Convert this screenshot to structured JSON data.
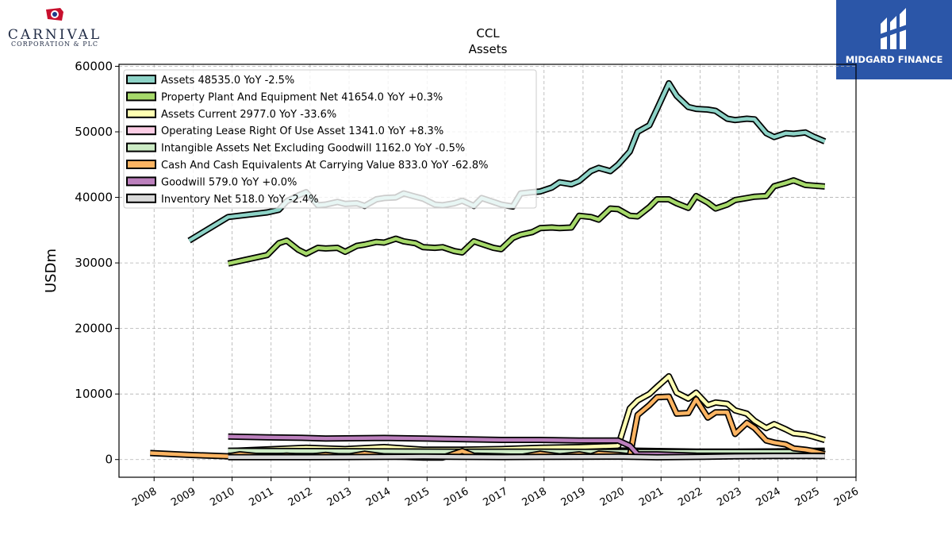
{
  "header": {
    "left_logo": {
      "name": "CARNIVAL",
      "subtitle": "CORPORATION & PLC"
    },
    "right_logo": {
      "name": "MIDGARD FINANCE"
    }
  },
  "chart_data": {
    "type": "line",
    "title": "CCL",
    "subtitle": "Assets",
    "xlabel": "",
    "ylabel": "USDm",
    "xlim": [
      2007.1,
      2026.0
    ],
    "ylim": [
      -2700,
      60300
    ],
    "x_ticks": [
      2008,
      2009,
      2010,
      2011,
      2012,
      2013,
      2014,
      2015,
      2016,
      2017,
      2018,
      2019,
      2020,
      2021,
      2022,
      2023,
      2024,
      2025,
      2026
    ],
    "x_tick_labels": [
      "2008",
      "2009",
      "2010",
      "2011",
      "2012",
      "2013",
      "2014",
      "2015",
      "2016",
      "2017",
      "2018",
      "2019",
      "2020",
      "2021",
      "2022",
      "2023",
      "2024",
      "2025",
      "2026"
    ],
    "y_ticks": [
      0,
      10000,
      20000,
      30000,
      40000,
      50000,
      60000
    ],
    "y_tick_labels": [
      "0",
      "10000",
      "20000",
      "30000",
      "40000",
      "50000",
      "60000"
    ],
    "grid": true,
    "legend_position": "top-left",
    "series": [
      {
        "name": "Assets  48535.0 YoY -2.5%",
        "color": "#8dd3c7",
        "points": [
          [
            2008.9,
            33400
          ],
          [
            2009.9,
            37000
          ],
          [
            2010.9,
            37700
          ],
          [
            2011.2,
            38100
          ],
          [
            2011.4,
            39400
          ],
          [
            2011.7,
            40300
          ],
          [
            2011.9,
            40800
          ],
          [
            2012.2,
            38800
          ],
          [
            2012.4,
            38900
          ],
          [
            2012.7,
            39300
          ],
          [
            2012.9,
            39000
          ],
          [
            2013.2,
            39100
          ],
          [
            2013.4,
            38700
          ],
          [
            2013.7,
            39700
          ],
          [
            2013.9,
            39900
          ],
          [
            2014.2,
            40000
          ],
          [
            2014.4,
            40600
          ],
          [
            2014.7,
            40100
          ],
          [
            2014.9,
            39800
          ],
          [
            2015.2,
            38900
          ],
          [
            2015.4,
            38800
          ],
          [
            2015.7,
            39100
          ],
          [
            2015.9,
            39500
          ],
          [
            2016.2,
            38700
          ],
          [
            2016.4,
            39900
          ],
          [
            2016.7,
            39300
          ],
          [
            2016.9,
            38900
          ],
          [
            2017.2,
            38600
          ],
          [
            2017.4,
            40600
          ],
          [
            2017.7,
            40800
          ],
          [
            2017.9,
            40900
          ],
          [
            2018.2,
            41500
          ],
          [
            2018.4,
            42300
          ],
          [
            2018.7,
            42000
          ],
          [
            2018.9,
            42500
          ],
          [
            2019.2,
            44000
          ],
          [
            2019.4,
            44500
          ],
          [
            2019.7,
            44000
          ],
          [
            2019.9,
            45000
          ],
          [
            2020.2,
            47000
          ],
          [
            2020.4,
            50000
          ],
          [
            2020.7,
            51000
          ],
          [
            2020.9,
            53500
          ],
          [
            2021.2,
            57400
          ],
          [
            2021.4,
            55500
          ],
          [
            2021.7,
            53800
          ],
          [
            2021.9,
            53500
          ],
          [
            2022.2,
            53400
          ],
          [
            2022.4,
            53200
          ],
          [
            2022.7,
            52000
          ],
          [
            2022.9,
            51800
          ],
          [
            2023.2,
            52000
          ],
          [
            2023.4,
            51900
          ],
          [
            2023.7,
            49800
          ],
          [
            2023.9,
            49200
          ],
          [
            2024.2,
            49800
          ],
          [
            2024.4,
            49700
          ],
          [
            2024.7,
            49900
          ],
          [
            2024.9,
            49300
          ],
          [
            2025.2,
            48535
          ]
        ]
      },
      {
        "name": "Property Plant And Equipment Net  41654.0 YoY +0.3%",
        "color": "#a6d96a",
        "points": [
          [
            2009.9,
            29900
          ],
          [
            2010.9,
            31200
          ],
          [
            2011.2,
            33000
          ],
          [
            2011.4,
            33400
          ],
          [
            2011.7,
            32000
          ],
          [
            2011.9,
            31400
          ],
          [
            2012.2,
            32300
          ],
          [
            2012.4,
            32200
          ],
          [
            2012.7,
            32300
          ],
          [
            2012.9,
            31700
          ],
          [
            2013.2,
            32600
          ],
          [
            2013.4,
            32800
          ],
          [
            2013.7,
            33200
          ],
          [
            2013.9,
            33100
          ],
          [
            2014.2,
            33700
          ],
          [
            2014.4,
            33300
          ],
          [
            2014.7,
            33000
          ],
          [
            2014.9,
            32400
          ],
          [
            2015.2,
            32300
          ],
          [
            2015.4,
            32400
          ],
          [
            2015.7,
            31800
          ],
          [
            2015.9,
            31600
          ],
          [
            2016.2,
            33300
          ],
          [
            2016.4,
            32900
          ],
          [
            2016.7,
            32300
          ],
          [
            2016.9,
            32100
          ],
          [
            2017.2,
            33800
          ],
          [
            2017.4,
            34300
          ],
          [
            2017.7,
            34700
          ],
          [
            2017.9,
            35300
          ],
          [
            2018.2,
            35400
          ],
          [
            2018.4,
            35300
          ],
          [
            2018.7,
            35400
          ],
          [
            2018.9,
            37200
          ],
          [
            2019.2,
            37000
          ],
          [
            2019.4,
            36600
          ],
          [
            2019.7,
            38300
          ],
          [
            2019.9,
            38200
          ],
          [
            2020.2,
            37200
          ],
          [
            2020.4,
            37100
          ],
          [
            2020.7,
            38500
          ],
          [
            2020.9,
            39700
          ],
          [
            2021.2,
            39700
          ],
          [
            2021.4,
            39100
          ],
          [
            2021.7,
            38400
          ],
          [
            2021.9,
            40200
          ],
          [
            2022.2,
            39200
          ],
          [
            2022.4,
            38300
          ],
          [
            2022.7,
            38900
          ],
          [
            2022.9,
            39600
          ],
          [
            2023.2,
            39900
          ],
          [
            2023.4,
            40100
          ],
          [
            2023.7,
            40200
          ],
          [
            2023.9,
            41700
          ],
          [
            2024.2,
            42200
          ],
          [
            2024.4,
            42600
          ],
          [
            2024.7,
            41900
          ],
          [
            2024.9,
            41800
          ],
          [
            2025.2,
            41654
          ]
        ]
      },
      {
        "name": "Assets Current  2977.0 YoY -33.6%",
        "color": "#ffffb3",
        "points": [
          [
            2009.9,
            1300
          ],
          [
            2011.9,
            1800
          ],
          [
            2012.9,
            1600
          ],
          [
            2013.9,
            1900
          ],
          [
            2014.9,
            1500
          ],
          [
            2015.9,
            1500
          ],
          [
            2016.9,
            1600
          ],
          [
            2017.9,
            1800
          ],
          [
            2018.9,
            1900
          ],
          [
            2019.9,
            2100
          ],
          [
            2020.2,
            7800
          ],
          [
            2020.4,
            9000
          ],
          [
            2020.7,
            10000
          ],
          [
            2020.9,
            11100
          ],
          [
            2021.2,
            12700
          ],
          [
            2021.4,
            10200
          ],
          [
            2021.7,
            9300
          ],
          [
            2021.9,
            10200
          ],
          [
            2022.2,
            8300
          ],
          [
            2022.4,
            8700
          ],
          [
            2022.7,
            8500
          ],
          [
            2022.9,
            7500
          ],
          [
            2023.2,
            7000
          ],
          [
            2023.4,
            5900
          ],
          [
            2023.7,
            4800
          ],
          [
            2023.9,
            5400
          ],
          [
            2024.2,
            4600
          ],
          [
            2024.4,
            4000
          ],
          [
            2024.7,
            3800
          ],
          [
            2024.9,
            3500
          ],
          [
            2025.2,
            2977
          ]
        ]
      },
      {
        "name": "Operating Lease Right Of Use Asset  1341.0 YoY +8.3%",
        "color": "#fccde5",
        "points": [
          [
            2019.9,
            1400
          ],
          [
            2020.9,
            1300
          ],
          [
            2021.9,
            1200
          ],
          [
            2022.9,
            1200
          ],
          [
            2023.9,
            1240
          ],
          [
            2025.2,
            1341
          ]
        ]
      },
      {
        "name": "Intangible Assets Net Excluding Goodwill  1162.0 YoY -0.5%",
        "color": "#ccebc5",
        "points": [
          [
            2009.9,
            1350
          ],
          [
            2011.9,
            1300
          ],
          [
            2013.9,
            1250
          ],
          [
            2015.9,
            1200
          ],
          [
            2017.9,
            1200
          ],
          [
            2019.9,
            1180
          ],
          [
            2021.9,
            1170
          ],
          [
            2023.9,
            1168
          ],
          [
            2025.2,
            1162
          ]
        ]
      },
      {
        "name": "Cash And Cash Equivalents At Carrying Value  833.0 YoY -62.8%",
        "color": "#fdb462",
        "points": [
          [
            2007.9,
            1000
          ],
          [
            2008.9,
            700
          ],
          [
            2009.9,
            500
          ],
          [
            2010.2,
            800
          ],
          [
            2010.9,
            400
          ],
          [
            2011.4,
            600
          ],
          [
            2011.9,
            400
          ],
          [
            2012.4,
            700
          ],
          [
            2012.9,
            400
          ],
          [
            2013.4,
            900
          ],
          [
            2013.9,
            500
          ],
          [
            2014.4,
            400
          ],
          [
            2014.9,
            300
          ],
          [
            2015.4,
            300
          ],
          [
            2015.9,
            1300
          ],
          [
            2016.2,
            600
          ],
          [
            2016.9,
            500
          ],
          [
            2017.4,
            400
          ],
          [
            2017.9,
            900
          ],
          [
            2018.4,
            500
          ],
          [
            2018.9,
            800
          ],
          [
            2019.2,
            500
          ],
          [
            2019.4,
            900
          ],
          [
            2019.9,
            700
          ],
          [
            2020.2,
            500
          ],
          [
            2020.4,
            6800
          ],
          [
            2020.7,
            8300
          ],
          [
            2020.9,
            9500
          ],
          [
            2021.2,
            9600
          ],
          [
            2021.4,
            7000
          ],
          [
            2021.7,
            7100
          ],
          [
            2021.9,
            9200
          ],
          [
            2022.2,
            6400
          ],
          [
            2022.4,
            7200
          ],
          [
            2022.7,
            7200
          ],
          [
            2022.9,
            3900
          ],
          [
            2023.2,
            5600
          ],
          [
            2023.4,
            4800
          ],
          [
            2023.7,
            2900
          ],
          [
            2023.9,
            2600
          ],
          [
            2024.2,
            2300
          ],
          [
            2024.4,
            1700
          ],
          [
            2024.7,
            1500
          ],
          [
            2024.9,
            1300
          ],
          [
            2025.2,
            833
          ]
        ]
      },
      {
        "name": "Goodwill  579.0 YoY +0.0%",
        "color": "#bc80bd",
        "points": [
          [
            2009.9,
            3500
          ],
          [
            2010.9,
            3400
          ],
          [
            2011.9,
            3300
          ],
          [
            2012.4,
            3200
          ],
          [
            2013.9,
            3300
          ],
          [
            2014.9,
            3200
          ],
          [
            2015.9,
            3100
          ],
          [
            2016.9,
            3000
          ],
          [
            2017.9,
            3000
          ],
          [
            2018.9,
            2900
          ],
          [
            2019.9,
            2900
          ],
          [
            2020.2,
            2100
          ],
          [
            2020.4,
            800
          ],
          [
            2020.9,
            800
          ],
          [
            2021.9,
            600
          ],
          [
            2022.9,
            580
          ],
          [
            2023.9,
            579
          ],
          [
            2025.2,
            579
          ]
        ]
      },
      {
        "name": "Inventory Net  518.0 YoY -2.4%",
        "color": "#d9d9d9",
        "points": [
          [
            2009.9,
            350
          ],
          [
            2010.9,
            350
          ],
          [
            2011.9,
            350
          ],
          [
            2012.9,
            380
          ],
          [
            2013.9,
            400
          ],
          [
            2014.9,
            450
          ],
          [
            2015.9,
            400
          ],
          [
            2016.9,
            380
          ],
          [
            2017.9,
            400
          ],
          [
            2018.9,
            420
          ],
          [
            2019.9,
            450
          ],
          [
            2020.9,
            340
          ],
          [
            2021.9,
            400
          ],
          [
            2022.9,
            500
          ],
          [
            2023.9,
            550
          ],
          [
            2024.9,
            530
          ],
          [
            2025.2,
            518
          ]
        ]
      }
    ]
  }
}
